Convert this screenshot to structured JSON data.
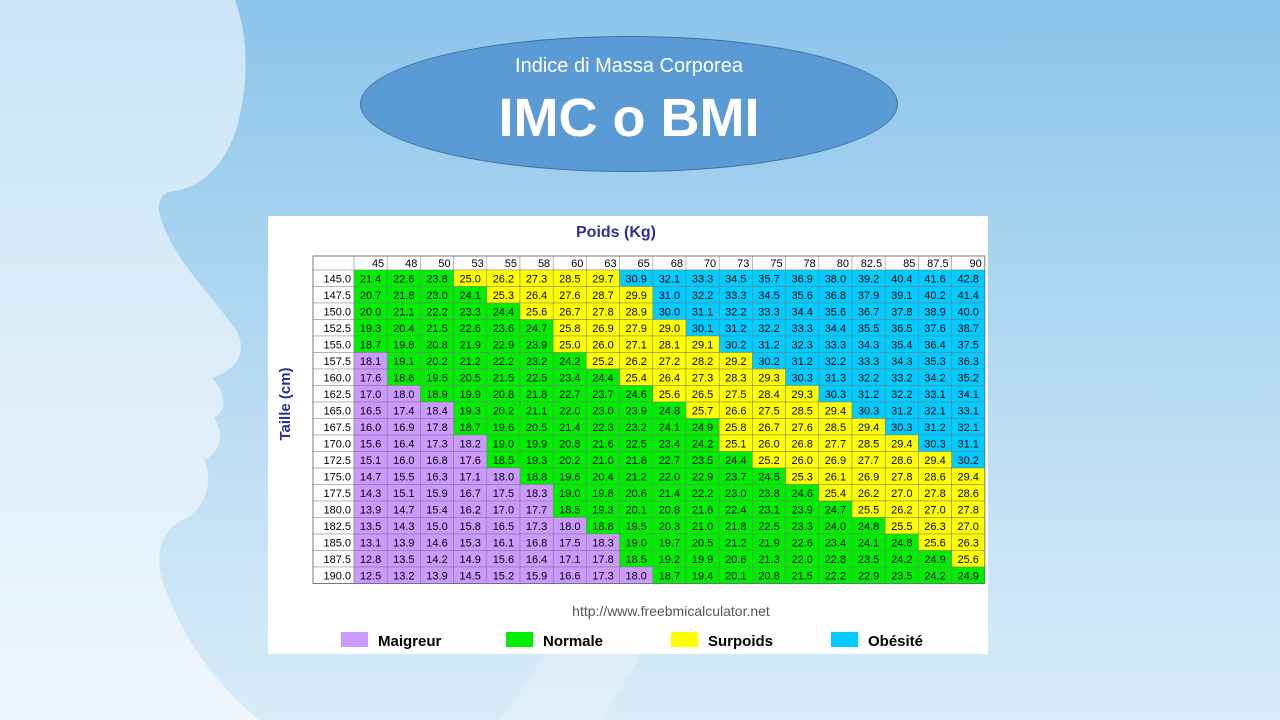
{
  "slide": {
    "subtitle": "Indice di Massa Corporea",
    "title": "IMC o BMI"
  },
  "colors": {
    "maigreur": "#cc99ff",
    "normale": "#00ee00",
    "surpoids": "#ffff00",
    "obesite": "#00ccff"
  },
  "chart_data": {
    "type": "table",
    "title": "Poids (Kg)",
    "ylabel": "Taille (cm)",
    "source_url": "http://www.freebmicalculator.net",
    "weights": [
      "45",
      "48",
      "50",
      "53",
      "55",
      "58",
      "60",
      "63",
      "65",
      "68",
      "70",
      "73",
      "75",
      "78",
      "80",
      "82.5",
      "85",
      "87.5",
      "90"
    ],
    "heights": [
      "145.0",
      "147.5",
      "150.0",
      "152.5",
      "155.0",
      "157.5",
      "160.0",
      "162.5",
      "165.0",
      "167.5",
      "170.0",
      "172.5",
      "175.0",
      "177.5",
      "180.0",
      "182.5",
      "185.0",
      "187.5",
      "190.0"
    ],
    "values": [
      [
        "21.4",
        "22.6",
        "23.8",
        "25.0",
        "26.2",
        "27.3",
        "28.5",
        "29.7",
        "30.9",
        "32.1",
        "33.3",
        "34.5",
        "35.7",
        "36.9",
        "38.0",
        "39.2",
        "40.4",
        "41.6",
        "42.8"
      ],
      [
        "20.7",
        "21.8",
        "23.0",
        "24.1",
        "25.3",
        "26.4",
        "27.6",
        "28.7",
        "29.9",
        "31.0",
        "32.2",
        "33.3",
        "34.5",
        "35.6",
        "36.8",
        "37.9",
        "39.1",
        "40.2",
        "41.4"
      ],
      [
        "20.0",
        "21.1",
        "22.2",
        "23.3",
        "24.4",
        "25.6",
        "26.7",
        "27.8",
        "28.9",
        "30.0",
        "31.1",
        "32.2",
        "33.3",
        "34.4",
        "35.6",
        "36.7",
        "37.8",
        "38.9",
        "40.0"
      ],
      [
        "19.3",
        "20.4",
        "21.5",
        "22.6",
        "23.6",
        "24.7",
        "25.8",
        "26.9",
        "27.9",
        "29.0",
        "30.1",
        "31.2",
        "32.2",
        "33.3",
        "34.4",
        "35.5",
        "36.5",
        "37.6",
        "38.7"
      ],
      [
        "18.7",
        "19.8",
        "20.8",
        "21.9",
        "22.9",
        "23.9",
        "25.0",
        "26.0",
        "27.1",
        "28.1",
        "29.1",
        "30.2",
        "31.2",
        "32.3",
        "33.3",
        "34.3",
        "35.4",
        "36.4",
        "37.5"
      ],
      [
        "18.1",
        "19.1",
        "20.2",
        "21.2",
        "22.2",
        "23.2",
        "24.2",
        "25.2",
        "26.2",
        "27.2",
        "28.2",
        "29.2",
        "30.2",
        "31.2",
        "32.2",
        "33.3",
        "34.3",
        "35.3",
        "36.3"
      ],
      [
        "17.6",
        "18.6",
        "19.5",
        "20.5",
        "21.5",
        "22.5",
        "23.4",
        "24.4",
        "25.4",
        "26.4",
        "27.3",
        "28.3",
        "29.3",
        "30.3",
        "31.3",
        "32.2",
        "33.2",
        "34.2",
        "35.2"
      ],
      [
        "17.0",
        "18.0",
        "18.9",
        "19.9",
        "20.8",
        "21.8",
        "22.7",
        "23.7",
        "24.6",
        "25.6",
        "26.5",
        "27.5",
        "28.4",
        "29.3",
        "30.3",
        "31.2",
        "32.2",
        "33.1",
        "34.1"
      ],
      [
        "16.5",
        "17.4",
        "18.4",
        "19.3",
        "20.2",
        "21.1",
        "22.0",
        "23.0",
        "23.9",
        "24.8",
        "25.7",
        "26.6",
        "27.5",
        "28.5",
        "29.4",
        "30.3",
        "31.2",
        "32.1",
        "33.1"
      ],
      [
        "16.0",
        "16.9",
        "17.8",
        "18.7",
        "19.6",
        "20.5",
        "21.4",
        "22.3",
        "23.2",
        "24.1",
        "24.9",
        "25.8",
        "26.7",
        "27.6",
        "28.5",
        "29.4",
        "30.3",
        "31.2",
        "32.1"
      ],
      [
        "15.6",
        "16.4",
        "17.3",
        "18.2",
        "19.0",
        "19.9",
        "20.8",
        "21.6",
        "22.5",
        "23.4",
        "24.2",
        "25.1",
        "26.0",
        "26.8",
        "27.7",
        "28.5",
        "29.4",
        "30.3",
        "31.1"
      ],
      [
        "15.1",
        "16.0",
        "16.8",
        "17.6",
        "18.5",
        "19.3",
        "20.2",
        "21.0",
        "21.8",
        "22.7",
        "23.5",
        "24.4",
        "25.2",
        "26.0",
        "26.9",
        "27.7",
        "28.6",
        "29.4",
        "30.2"
      ],
      [
        "14.7",
        "15.5",
        "16.3",
        "17.1",
        "18.0",
        "18.8",
        "19.6",
        "20.4",
        "21.2",
        "22.0",
        "22.9",
        "23.7",
        "24.5",
        "25.3",
        "26.1",
        "26.9",
        "27.8",
        "28.6",
        "29.4"
      ],
      [
        "14.3",
        "15.1",
        "15.9",
        "16.7",
        "17.5",
        "18.3",
        "19.0",
        "19.8",
        "20.6",
        "21.4",
        "22.2",
        "23.0",
        "23.8",
        "24.6",
        "25.4",
        "26.2",
        "27.0",
        "27.8",
        "28.6"
      ],
      [
        "13.9",
        "14.7",
        "15.4",
        "16.2",
        "17.0",
        "17.7",
        "18.5",
        "19.3",
        "20.1",
        "20.8",
        "21.6",
        "22.4",
        "23.1",
        "23.9",
        "24.7",
        "25.5",
        "26.2",
        "27.0",
        "27.8"
      ],
      [
        "13.5",
        "14.3",
        "15.0",
        "15.8",
        "16.5",
        "17.3",
        "18.0",
        "18.8",
        "19.5",
        "20.3",
        "21.0",
        "21.8",
        "22.5",
        "23.3",
        "24.0",
        "24.8",
        "25.5",
        "26.3",
        "27.0"
      ],
      [
        "13.1",
        "13.9",
        "14.6",
        "15.3",
        "16.1",
        "16.8",
        "17.5",
        "18.3",
        "19.0",
        "19.7",
        "20.5",
        "21.2",
        "21.9",
        "22.6",
        "23.4",
        "24.1",
        "24.8",
        "25.6",
        "26.3"
      ],
      [
        "12.8",
        "13.5",
        "14.2",
        "14.9",
        "15.6",
        "16.4",
        "17.1",
        "17.8",
        "18.5",
        "19.2",
        "19.9",
        "20.6",
        "21.3",
        "22.0",
        "22.8",
        "23.5",
        "24.2",
        "24.9",
        "25.6"
      ],
      [
        "12.5",
        "13.2",
        "13.9",
        "14.5",
        "15.2",
        "15.9",
        "16.6",
        "17.3",
        "18.0",
        "18.7",
        "19.4",
        "20.1",
        "20.8",
        "21.5",
        "22.2",
        "22.9",
        "23.5",
        "24.2",
        "24.9"
      ]
    ],
    "legend": [
      {
        "label": "Maigreur",
        "color": "#cc99ff"
      },
      {
        "label": "Normale",
        "color": "#00ee00"
      },
      {
        "label": "Surpoids",
        "color": "#ffff00"
      },
      {
        "label": "Obésité",
        "color": "#00ccff"
      }
    ],
    "legend_position": "bottom"
  }
}
